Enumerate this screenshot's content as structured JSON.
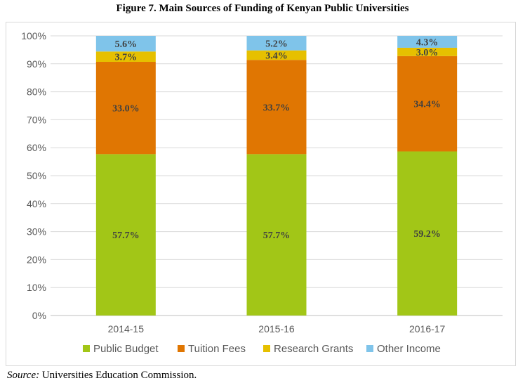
{
  "title": "Figure 7. Main Sources of Funding of Kenyan Public Universities",
  "source_label": "Source:",
  "source_text": "Universities Education Commission.",
  "chart_data": {
    "type": "bar",
    "stacked": true,
    "categories": [
      "2014-15",
      "2015-16",
      "2016-17"
    ],
    "series": [
      {
        "name": "Public Budget",
        "color": "#a2c617",
        "values": [
          57.7,
          57.7,
          59.2
        ],
        "labels": [
          "57.7%",
          "57.7%",
          "59.2%"
        ]
      },
      {
        "name": "Tuition Fees",
        "color": "#e07602",
        "values": [
          33.0,
          33.7,
          34.4
        ],
        "labels": [
          "33.0%",
          "33.7%",
          "34.4%"
        ]
      },
      {
        "name": "Research Grants",
        "color": "#e6c000",
        "values": [
          3.7,
          3.4,
          3.0
        ],
        "labels": [
          "3.7%",
          "3.4%",
          "3.0%"
        ]
      },
      {
        "name": "Other Income",
        "color": "#7fc4ea",
        "values": [
          5.6,
          5.2,
          4.3
        ],
        "labels": [
          "5.6%",
          "5.2%",
          "4.3%"
        ]
      }
    ],
    "yticks": [
      "0%",
      "10%",
      "20%",
      "30%",
      "40%",
      "50%",
      "60%",
      "70%",
      "80%",
      "90%",
      "100%"
    ],
    "ylim": [
      0,
      100
    ],
    "grid": true,
    "legend_position": "bottom"
  }
}
